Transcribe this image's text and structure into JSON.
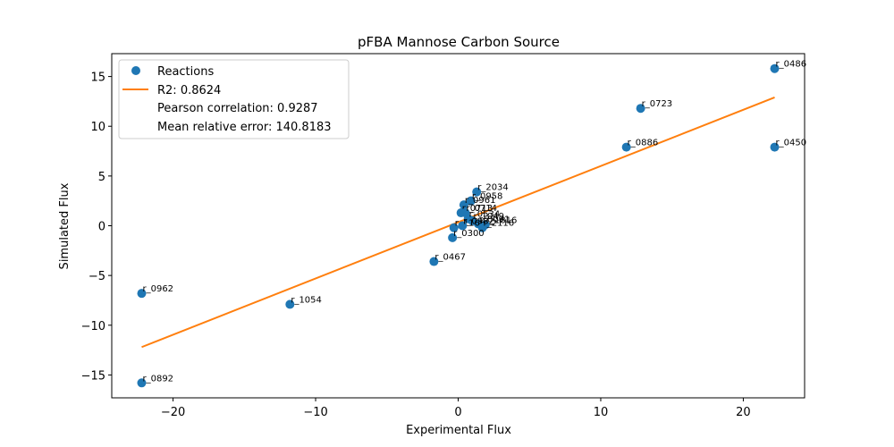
{
  "chart_data": {
    "type": "scatter",
    "title": "pFBA Mannose Carbon Source",
    "xlabel": "Experimental Flux",
    "ylabel": "Simulated Flux",
    "xlim": [
      -24.3,
      24.3
    ],
    "ylim": [
      -17.3,
      17.3
    ],
    "xticks": [
      -20,
      -10,
      0,
      10,
      20
    ],
    "xtick_labels": [
      "−20",
      "−10",
      "0",
      "10",
      "20"
    ],
    "yticks": [
      -15,
      -10,
      -5,
      0,
      5,
      10,
      15
    ],
    "ytick_labels": [
      "−15",
      "−10",
      "−5",
      "0",
      "5",
      "10",
      "15"
    ],
    "grid": false,
    "legend_position": "top-left",
    "colors": {
      "points": "#1f77b4",
      "fit_line": "#ff7f0e"
    },
    "legend": {
      "points_label": "Reactions",
      "line_label": "R2: 0.8624",
      "extra_lines": [
        "Pearson correlation: 0.9287",
        "Mean relative error: 140.8183"
      ]
    },
    "fit_line": {
      "x": [
        -22.2,
        22.2
      ],
      "y": [
        -12.2,
        12.9
      ]
    },
    "series": [
      {
        "name": "Reactions",
        "points": [
          {
            "x": 22.2,
            "y": 15.8,
            "label": "r_0486"
          },
          {
            "x": 12.8,
            "y": 11.8,
            "label": "r_0723"
          },
          {
            "x": 11.8,
            "y": 7.9,
            "label": "r_0886"
          },
          {
            "x": 22.2,
            "y": 7.9,
            "label": "r_0450"
          },
          {
            "x": 1.3,
            "y": 3.4,
            "label": "r_2034"
          },
          {
            "x": 0.9,
            "y": 2.5,
            "label": "r_0958"
          },
          {
            "x": 0.4,
            "y": 2.1,
            "label": "r_0961"
          },
          {
            "x": 0.2,
            "y": 1.3,
            "label": "r_0713"
          },
          {
            "x": 0.5,
            "y": 1.3,
            "label": "r_0714"
          },
          {
            "x": 0.7,
            "y": 0.7,
            "label": "r_0534"
          },
          {
            "x": 1.0,
            "y": 0.5,
            "label": "r_1049"
          },
          {
            "x": 1.4,
            "y": 0.2,
            "label": "r_0091"
          },
          {
            "x": 1.9,
            "y": 0.1,
            "label": "r_1816"
          },
          {
            "x": -0.3,
            "y": -0.2,
            "label": "r_1166"
          },
          {
            "x": 0.3,
            "y": 0.0,
            "label": "r_0982"
          },
          {
            "x": 1.7,
            "y": -0.2,
            "label": "r_2116"
          },
          {
            "x": -0.4,
            "y": -1.2,
            "label": "r_0300"
          },
          {
            "x": -1.7,
            "y": -3.6,
            "label": "r_0467"
          },
          {
            "x": -22.2,
            "y": -6.8,
            "label": "r_0962"
          },
          {
            "x": -11.8,
            "y": -7.9,
            "label": "r_1054"
          },
          {
            "x": -22.2,
            "y": -15.8,
            "label": "r_0892"
          }
        ]
      }
    ]
  }
}
